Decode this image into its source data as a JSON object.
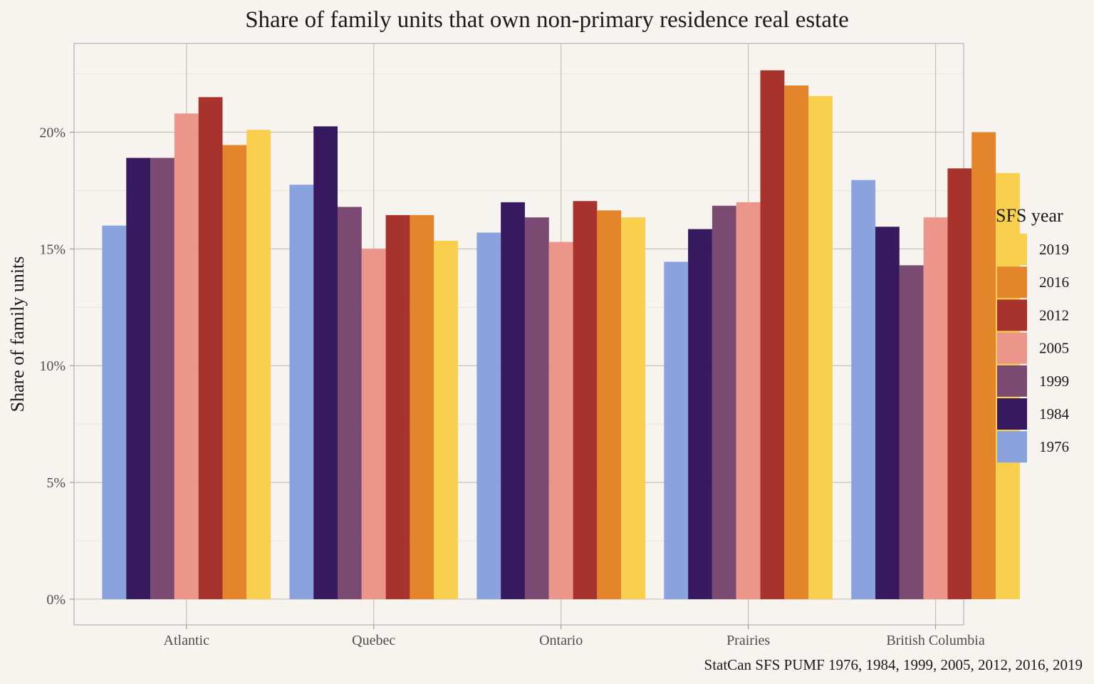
{
  "chart_data": {
    "type": "bar",
    "title": "Share of family units that own non-primary residence real estate",
    "xlabel": "",
    "ylabel": "Share of family units",
    "caption": "StatCan SFS PUMF 1976, 1984, 1999, 2005, 2012, 2016, 2019",
    "categories": [
      "Atlantic",
      "Quebec",
      "Ontario",
      "Prairies",
      "British Columbia"
    ],
    "ylim": [
      -0.011,
      0.238
    ],
    "y_ticks": [
      0,
      0.05,
      0.1,
      0.15,
      0.2
    ],
    "y_tick_labels": [
      "0%",
      "5%",
      "10%",
      "15%",
      "20%"
    ],
    "grid": true,
    "legend": {
      "title": "SFS year",
      "position": "right",
      "order": [
        "2019",
        "2016",
        "2012",
        "2005",
        "1999",
        "1984",
        "1976"
      ]
    },
    "series": [
      {
        "name": "1976",
        "color": "#8aa2de",
        "values": [
          0.16,
          0.1775,
          0.157,
          0.1445,
          0.1795
        ]
      },
      {
        "name": "1984",
        "color": "#36195e",
        "values": [
          0.189,
          0.2025,
          0.17,
          0.1585,
          0.1595
        ]
      },
      {
        "name": "1999",
        "color": "#7a4a72",
        "values": [
          0.189,
          0.168,
          0.1635,
          0.1685,
          0.143
        ]
      },
      {
        "name": "2005",
        "color": "#ec968b",
        "values": [
          0.208,
          0.15,
          0.153,
          0.17,
          0.1635
        ]
      },
      {
        "name": "2012",
        "color": "#a8322c",
        "values": [
          0.215,
          0.1645,
          0.1705,
          0.2265,
          0.1845
        ]
      },
      {
        "name": "2016",
        "color": "#e5852b",
        "values": [
          0.1945,
          0.1645,
          0.1665,
          0.22,
          0.2
        ]
      },
      {
        "name": "2019",
        "color": "#f8d04d",
        "values": [
          0.201,
          0.1535,
          0.1635,
          0.2155,
          0.1825
        ]
      }
    ]
  }
}
